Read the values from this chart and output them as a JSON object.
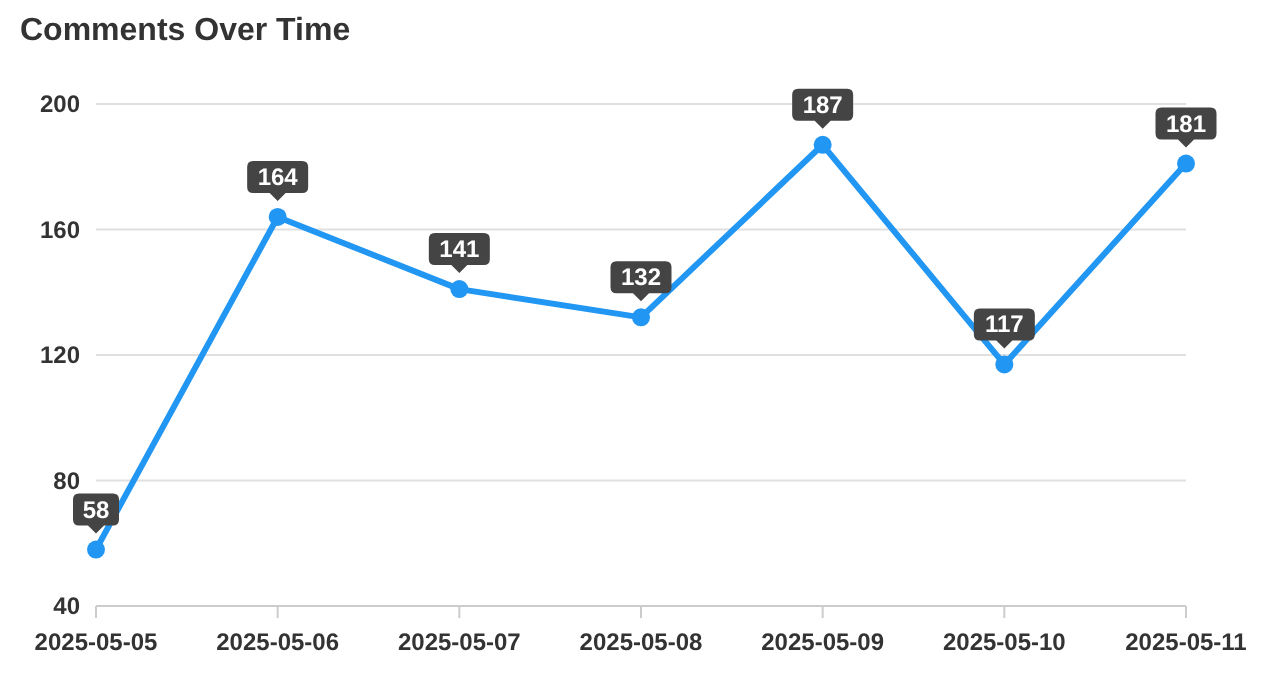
{
  "chart_data": {
    "type": "line",
    "title": "Comments Over Time",
    "categories": [
      "2025-05-05",
      "2025-05-06",
      "2025-05-07",
      "2025-05-08",
      "2025-05-09",
      "2025-05-10",
      "2025-05-11"
    ],
    "series": [
      {
        "color": "#2196f3",
        "values": [
          58,
          164,
          141,
          132,
          187,
          117,
          181
        ]
      }
    ],
    "ylim": [
      40,
      200
    ],
    "yticks": [
      40,
      80,
      120,
      160,
      200
    ],
    "grid": "y",
    "marker": "circle",
    "line_style": "solid",
    "data_labels": true
  }
}
